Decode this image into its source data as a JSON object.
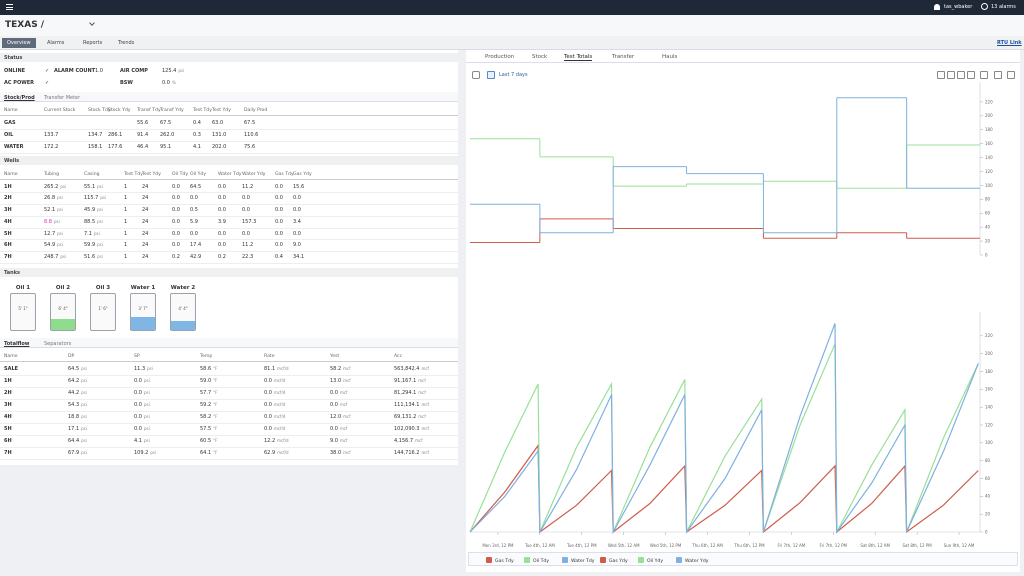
{
  "header": {
    "site": "TEXAS /",
    "user": "tas_wbaker",
    "alarms": "13 alarms"
  },
  "nav": {
    "tabs": [
      "Overview",
      "Alarms",
      "Reports",
      "Trends"
    ],
    "link": "RTU Link"
  },
  "status": {
    "title": "Status",
    "rows": [
      [
        {
          "label": "ONLINE",
          "value": "✓"
        },
        {
          "label": "ALARM COUNT",
          "value": "1.0"
        },
        {
          "label": "AIR COMP",
          "value": "125.4",
          "unit": "psi"
        }
      ],
      [
        {
          "label": "AC POWER",
          "value": "✓"
        },
        null,
        {
          "label": "BSW",
          "value": "0.0",
          "unit": "%"
        }
      ]
    ]
  },
  "stock": {
    "tabs": [
      "Stock/Prod",
      "Transfer Meter"
    ],
    "columns": [
      "Name",
      "Current Stock",
      "Stock Tdy",
      "Stock Ydy",
      "Transf Tdy",
      "Transf Ydy",
      "Test Tdy",
      "Test Ydy",
      "Daily Prod"
    ],
    "rows": [
      [
        "GAS",
        null,
        null,
        null,
        "55.6",
        "67.5",
        "0.4",
        "63.0",
        "67.5"
      ],
      [
        "OIL",
        "133.7",
        "134.7",
        "286.1",
        "91.4",
        "262.0",
        "0.3",
        "131.0",
        "110.6"
      ],
      [
        "WATER",
        "172.2",
        "158.1",
        "177.6",
        "46.4",
        "95.1",
        "4.1",
        "202.0",
        "75.6"
      ]
    ]
  },
  "wells": {
    "title": "Wells",
    "columns": [
      "Name",
      "Tubing",
      "Casing",
      "Test Tdy",
      "Test Ydy",
      "Oil Tdy",
      "Oil Ydy",
      "Water Tdy",
      "Water Ydy",
      "Gas Tdy",
      "Gas Ydy"
    ],
    "units": [
      null,
      "psi",
      "psi",
      null,
      null,
      null,
      null,
      null,
      null,
      null,
      null
    ],
    "rows": [
      [
        "1H",
        "265.2",
        "55.1",
        "1",
        "24",
        "0.0",
        "64.5",
        "0.0",
        "11.2",
        "0.0",
        "15.6"
      ],
      [
        "2H",
        "26.8",
        "115.7",
        "1",
        "24",
        "0.0",
        "0.0",
        "0.0",
        "0.0",
        "0.0",
        "0.0"
      ],
      [
        "3H",
        "52.1",
        "45.9",
        "1",
        "24",
        "0.0",
        "0.5",
        "0.0",
        "0.0",
        "0.0",
        "0.0"
      ],
      [
        "4H",
        "8.8",
        "88.5",
        "1",
        "24",
        "0.0",
        "5.9",
        "3.9",
        "157.3",
        "0.0",
        "3.4"
      ],
      [
        "5H",
        "12.7",
        "7.1",
        "1",
        "24",
        "0.0",
        "0.0",
        "0.0",
        "0.0",
        "0.0",
        "0.0"
      ],
      [
        "6H",
        "54.9",
        "59.9",
        "1",
        "24",
        "0.0",
        "17.4",
        "0.0",
        "11.2",
        "0.0",
        "9.0"
      ],
      [
        "7H",
        "248.7",
        "51.6",
        "1",
        "24",
        "0.2",
        "42.9",
        "0.2",
        "22.3",
        "0.4",
        "34.1"
      ]
    ]
  },
  "tanks": {
    "title": "Tanks",
    "items": [
      {
        "name": "Oil 1",
        "level": "5' 1\"",
        "fill": 0,
        "color": "#8fdc8f"
      },
      {
        "name": "Oil 2",
        "level": "6' 4\"",
        "fill": 30,
        "color": "#8fdc8f"
      },
      {
        "name": "Oil 3",
        "level": "1' 6\"",
        "fill": 0,
        "color": "#8fdc8f"
      },
      {
        "name": "Water 1",
        "level": "3' 7\"",
        "fill": 35,
        "color": "#7fb6e6"
      },
      {
        "name": "Water 2",
        "level": "4' 4\"",
        "fill": 25,
        "color": "#7fb6e6"
      }
    ]
  },
  "meters": {
    "tabs": [
      "Totalflow",
      "Separators"
    ],
    "columns": [
      "Name",
      "DP",
      "SP",
      "Temp",
      "Rate",
      "Yest",
      "Acc"
    ],
    "units": [
      null,
      "psi",
      "psi",
      "°F",
      "mcf/d",
      "mcf",
      "mcf"
    ],
    "rows": [
      [
        "SALE",
        "64.5",
        "11.3",
        "58.6",
        "81.1",
        "58.2",
        "563,842.4"
      ],
      [
        "1H",
        "64.2",
        "0.0",
        "59.0",
        "0.0",
        "13.0",
        "91,167.1"
      ],
      [
        "2H",
        "44.2",
        "0.0",
        "57.7",
        "0.0",
        "0.0",
        "81,294.1"
      ],
      [
        "3H",
        "54.3",
        "0.0",
        "59.2",
        "0.0",
        "0.0",
        "111,134.1"
      ],
      [
        "4H",
        "18.8",
        "0.0",
        "58.2",
        "0.0",
        "12.0",
        "69,131.2"
      ],
      [
        "5H",
        "17.1",
        "0.0",
        "57.5",
        "0.0",
        "0.0",
        "102,090.3"
      ],
      [
        "6H",
        "64.4",
        "4.1",
        "60.5",
        "12.2",
        "9.0",
        "4,156.7"
      ],
      [
        "7H",
        "67.9",
        "109.2",
        "64.1",
        "62.9",
        "38.0",
        "144,716.2"
      ]
    ]
  },
  "right": {
    "tabs": [
      "Production",
      "Stock",
      "Test Totals",
      "Transfer",
      "Hauls"
    ],
    "active_tab": 2,
    "range": "Last 7 days"
  },
  "chart_data": [
    {
      "type": "step",
      "x": [
        -8,
        12,
        33,
        54,
        76,
        97,
        117
      ],
      "xlim": [
        -8,
        138
      ],
      "ylim": [
        0,
        240
      ],
      "yticks": [
        0,
        20,
        40,
        60,
        80,
        100,
        120,
        140,
        160,
        180,
        200,
        220
      ],
      "series": [
        {
          "name": "Gas Tdy",
          "color": "#cf5b4a",
          "values": [
            18,
            52,
            38,
            38,
            24,
            32,
            24
          ]
        },
        {
          "name": "Oil Tdy",
          "color": "#98e098",
          "values": [
            167,
            141,
            99,
            102,
            106,
            96,
            158
          ]
        },
        {
          "name": "Water Tdy",
          "color": "#7fb0e0",
          "values": [
            73,
            32,
            127,
            117,
            32,
            226,
            96
          ]
        }
      ]
    },
    {
      "type": "line",
      "x": [
        -8,
        2,
        11.5,
        12,
        22.5,
        32.5,
        33,
        43.5,
        53.5,
        54,
        65,
        75.5,
        76,
        86.5,
        96.5,
        97,
        107,
        116.5,
        117,
        127.5,
        137.5
      ],
      "xlim": [
        -8,
        138
      ],
      "ylim": [
        0,
        240
      ],
      "yticks": [
        0,
        20,
        40,
        60,
        80,
        100,
        120,
        140,
        160,
        180,
        200,
        220
      ],
      "xticks": [
        {
          "value": 0,
          "label": "Mon 3rd, 12 PM"
        },
        {
          "value": 12,
          "label": "Tue 4th, 12 AM"
        },
        {
          "value": 24,
          "label": "Tue 4th, 12 PM"
        },
        {
          "value": 36,
          "label": "Wed 5th, 12 AM"
        },
        {
          "value": 48,
          "label": "Wed 5th, 12 PM"
        },
        {
          "value": 60,
          "label": "Thu 6th, 12 AM"
        },
        {
          "value": 72,
          "label": "Thu 6th, 12 PM"
        },
        {
          "value": 84,
          "label": "Fri 7th, 12 AM"
        },
        {
          "value": 96,
          "label": "Fri 7th, 12 PM"
        },
        {
          "value": 108,
          "label": "Sat 8th, 12 AM"
        },
        {
          "value": 120,
          "label": "Sat 8th, 12 PM"
        },
        {
          "value": 132,
          "label": "Sun 9th, 12 AM"
        }
      ],
      "series": [
        {
          "name": "Gas Ydy",
          "color": "#cf5b4a",
          "values": [
            0,
            45,
            97,
            0,
            30,
            69,
            0,
            32,
            74,
            0,
            30,
            69,
            0,
            33,
            74,
            0,
            32,
            74,
            0,
            30,
            69
          ]
        },
        {
          "name": "Oil Ydy",
          "color": "#98e098",
          "values": [
            0,
            90,
            166,
            0,
            95,
            166,
            0,
            95,
            171,
            0,
            85,
            149,
            0,
            120,
            211,
            0,
            75,
            137,
            0,
            105,
            189
          ]
        },
        {
          "name": "Water Ydy",
          "color": "#7fb0e0",
          "values": [
            0,
            40,
            91,
            0,
            70,
            154,
            0,
            75,
            154,
            0,
            60,
            137,
            0,
            130,
            234,
            0,
            55,
            120,
            0,
            90,
            189
          ]
        }
      ]
    }
  ]
}
